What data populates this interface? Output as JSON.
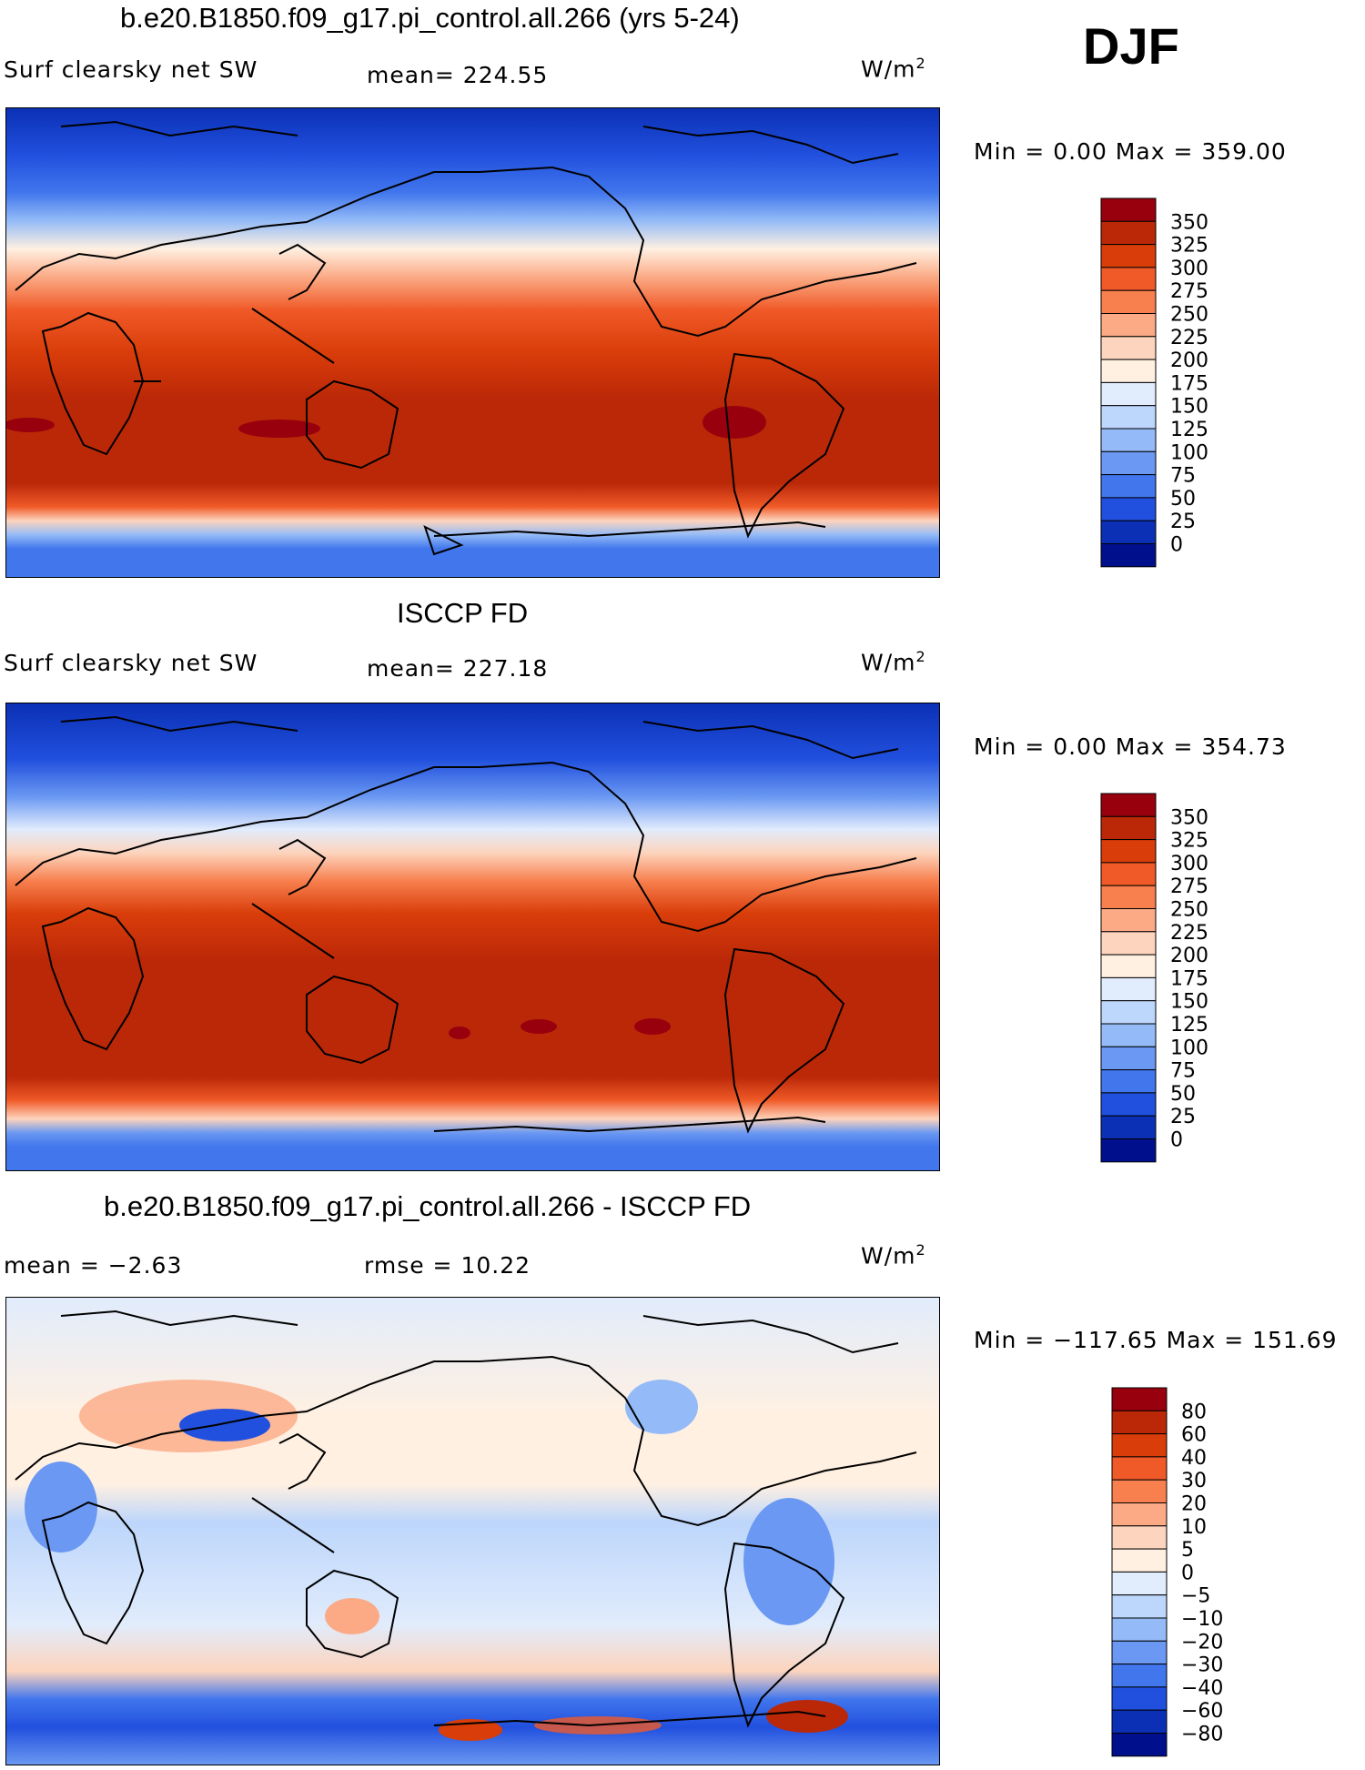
{
  "season": "DJF",
  "panels": [
    {
      "title": "b.e20.B1850.f09_g17.pi_control.all.266 (yrs 5-24)",
      "left_label": "Surf clearsky net SW",
      "center_label": "mean= 224.55",
      "units_base": "W/m",
      "units_exp": "2",
      "minmax": "Min =    0.00 Max = 359.00",
      "colorbar": {
        "colors": [
          "#99000d",
          "#bb2808",
          "#d93d0a",
          "#f05a28",
          "#f7804e",
          "#fbaa85",
          "#fdd4bd",
          "#fff0e2",
          "#e1ecfc",
          "#bdd6fb",
          "#94bbf7",
          "#6a98f2",
          "#4176ed",
          "#2150de",
          "#0b30b5",
          "#000f8c"
        ],
        "labels": [
          "350",
          "325",
          "300",
          "275",
          "250",
          "225",
          "200",
          "175",
          "150",
          "125",
          "100",
          "75",
          "50",
          "25",
          "0"
        ]
      }
    },
    {
      "title": "ISCCP FD",
      "left_label": "Surf clearsky net SW",
      "center_label": "mean= 227.18",
      "units_base": "W/m",
      "units_exp": "2",
      "minmax": "Min =    0.00 Max = 354.73",
      "colorbar": {
        "colors": [
          "#99000d",
          "#bb2808",
          "#d93d0a",
          "#f05a28",
          "#f7804e",
          "#fbaa85",
          "#fdd4bd",
          "#fff0e2",
          "#e1ecfc",
          "#bdd6fb",
          "#94bbf7",
          "#6a98f2",
          "#4176ed",
          "#2150de",
          "#0b30b5",
          "#000f8c"
        ],
        "labels": [
          "350",
          "325",
          "300",
          "275",
          "250",
          "225",
          "200",
          "175",
          "150",
          "125",
          "100",
          "75",
          "50",
          "25",
          "0"
        ]
      }
    },
    {
      "title": "b.e20.B1850.f09_g17.pi_control.all.266 - ISCCP FD",
      "left_label": "mean =   −2.63",
      "center_label": "rmse =   10.22",
      "units_base": "W/m",
      "units_exp": "2",
      "minmax": "Min = −117.65 Max = 151.69",
      "colorbar": {
        "colors": [
          "#99000d",
          "#bb2808",
          "#d93d0a",
          "#f05a28",
          "#f7804e",
          "#fbaa85",
          "#fdd4bd",
          "#fff0e2",
          "#e1ecfc",
          "#bdd6fb",
          "#94bbf7",
          "#6a98f2",
          "#4176ed",
          "#2150de",
          "#0b30b5",
          "#000f8c"
        ],
        "labels": [
          "80",
          "60",
          "40",
          "30",
          "20",
          "10",
          "5",
          "0",
          "−5",
          "−10",
          "−20",
          "−30",
          "−40",
          "−60",
          "−80"
        ]
      }
    }
  ]
}
